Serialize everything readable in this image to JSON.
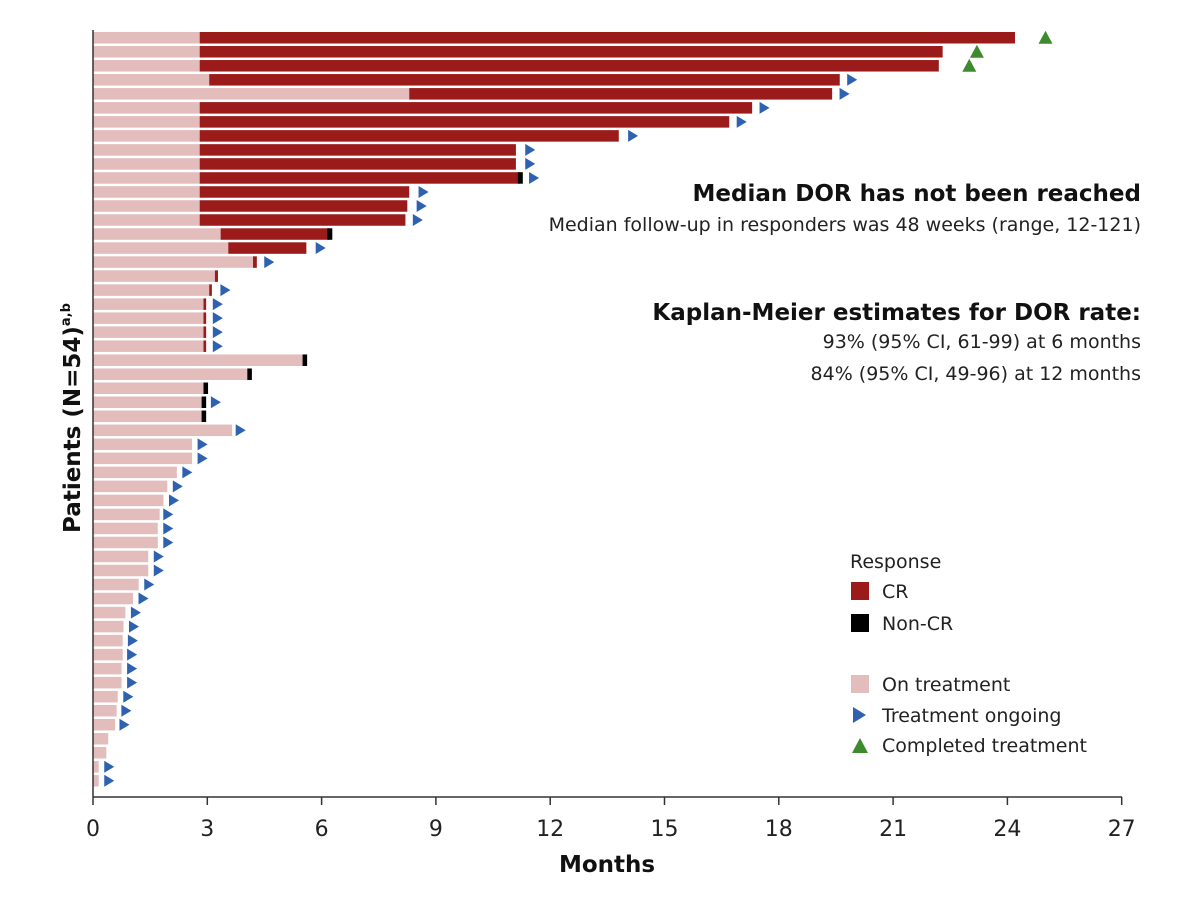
{
  "chart_data": {
    "type": "bar",
    "orientation": "horizontal-swimmer",
    "xlabel": "Months",
    "ylabel_main": "Patients (N=54)",
    "ylabel_sup": "a,b",
    "xlim": [
      0,
      27
    ],
    "xticks": [
      "0",
      "3",
      "6",
      "9",
      "12",
      "15",
      "18",
      "21",
      "24",
      "27"
    ],
    "n_patients": 54,
    "colors": {
      "on_treatment": "#e3bcbc",
      "cr": "#9b1b1b",
      "non_cr": "#000000",
      "ongoing": "#2e62b0",
      "completed": "#3d8b2e",
      "axis": "#333333"
    },
    "annotations": {
      "median_title": "Median DOR has not been reached",
      "median_sub": "Median follow-up in responders was 48 weeks (range, 12-121)",
      "km_title": "Kaplan-Meier estimates for DOR rate:",
      "km_line1": "93% (95% CI, 61-99) at 6 months",
      "km_line2": "84% (95% CI, 49-96) at 12 months"
    },
    "legend": {
      "title": "Response",
      "cr": "CR",
      "non_cr": "Non-CR",
      "on_treatment": "On treatment",
      "ongoing": "Treatment ongoing",
      "completed": "Completed treatment"
    },
    "patients": [
      {
        "onset": 2.8,
        "end": 24.2,
        "resp": "CR",
        "marker": "completed",
        "marker_at": 25.0
      },
      {
        "onset": 2.8,
        "end": 22.3,
        "resp": "CR",
        "marker": "completed",
        "marker_at": 23.2
      },
      {
        "onset": 2.8,
        "end": 22.2,
        "resp": "CR",
        "marker": "completed",
        "marker_at": 23.0
      },
      {
        "onset": 3.05,
        "end": 19.6,
        "resp": "CR",
        "marker": "ongoing",
        "marker_at": 19.9
      },
      {
        "onset": 8.3,
        "end": 19.4,
        "resp": "CR",
        "marker": "ongoing",
        "marker_at": 19.7
      },
      {
        "onset": 2.8,
        "end": 17.3,
        "resp": "CR",
        "marker": "ongoing",
        "marker_at": 17.6
      },
      {
        "onset": 2.8,
        "end": 16.7,
        "resp": "CR",
        "marker": "ongoing",
        "marker_at": 17.0
      },
      {
        "onset": 2.8,
        "end": 13.8,
        "resp": "CR",
        "marker": "ongoing",
        "marker_at": 14.15
      },
      {
        "onset": 2.8,
        "end": 11.1,
        "resp": "CR",
        "marker": "ongoing",
        "marker_at": 11.45
      },
      {
        "onset": 2.8,
        "end": 11.1,
        "resp": "CR",
        "marker": "ongoing",
        "marker_at": 11.45
      },
      {
        "onset": 2.8,
        "end": 11.2,
        "resp": "CR",
        "marker": "ongoing",
        "marker_at": 11.55,
        "nonCR_at": 11.15
      },
      {
        "onset": 2.8,
        "end": 8.3,
        "resp": "CR",
        "marker": "ongoing",
        "marker_at": 8.65
      },
      {
        "onset": 2.8,
        "end": 8.25,
        "resp": "CR",
        "marker": "ongoing",
        "marker_at": 8.6
      },
      {
        "onset": 2.8,
        "end": 8.2,
        "resp": "CR",
        "marker": "ongoing",
        "marker_at": 8.5
      },
      {
        "onset": 3.35,
        "end": 6.2,
        "resp": "CR",
        "marker": "none",
        "nonCR_at": 6.15
      },
      {
        "onset": 3.55,
        "end": 5.6,
        "resp": "CR",
        "marker": "ongoing",
        "marker_at": 5.95
      },
      {
        "onset": 4.2,
        "end": 4.3,
        "resp": "CR",
        "marker": "ongoing",
        "marker_at": 4.6
      },
      {
        "onset": 3.2,
        "end": 3.28,
        "resp": "CR",
        "marker": "none"
      },
      {
        "onset": 3.05,
        "end": 3.12,
        "resp": "CR",
        "marker": "ongoing",
        "marker_at": 3.45
      },
      {
        "onset": 2.9,
        "end": 2.97,
        "resp": "CR",
        "marker": "ongoing",
        "marker_at": 3.25
      },
      {
        "onset": 2.9,
        "end": 2.97,
        "resp": "CR",
        "marker": "ongoing",
        "marker_at": 3.25
      },
      {
        "onset": 2.9,
        "end": 2.97,
        "resp": "CR",
        "marker": "ongoing",
        "marker_at": 3.25
      },
      {
        "onset": 2.9,
        "end": 2.97,
        "resp": "CR",
        "marker": "ongoing",
        "marker_at": 3.25
      },
      {
        "onset": 5.5,
        "end": 5.62,
        "resp": "Non-CR",
        "marker": "none"
      },
      {
        "onset": 4.05,
        "end": 4.17,
        "resp": "Non-CR",
        "marker": "none"
      },
      {
        "onset": 2.9,
        "end": 3.02,
        "resp": "Non-CR",
        "marker": "none"
      },
      {
        "onset": 2.85,
        "end": 2.97,
        "resp": "Non-CR",
        "marker": "ongoing",
        "marker_at": 3.2
      },
      {
        "onset": 2.85,
        "end": 2.97,
        "resp": "Non-CR",
        "marker": "none"
      },
      {
        "onset": 3.65,
        "end": 3.65,
        "resp": "none",
        "marker": "ongoing",
        "marker_at": 3.85
      },
      {
        "onset": 2.6,
        "end": 2.6,
        "resp": "none",
        "marker": "ongoing",
        "marker_at": 2.85
      },
      {
        "onset": 2.6,
        "end": 2.6,
        "resp": "none",
        "marker": "ongoing",
        "marker_at": 2.85
      },
      {
        "onset": 2.2,
        "end": 2.2,
        "resp": "none",
        "marker": "ongoing",
        "marker_at": 2.45
      },
      {
        "onset": 1.95,
        "end": 1.95,
        "resp": "none",
        "marker": "ongoing",
        "marker_at": 2.2
      },
      {
        "onset": 1.85,
        "end": 1.85,
        "resp": "none",
        "marker": "ongoing",
        "marker_at": 2.1
      },
      {
        "onset": 1.75,
        "end": 1.75,
        "resp": "none",
        "marker": "ongoing",
        "marker_at": 1.95
      },
      {
        "onset": 1.7,
        "end": 1.7,
        "resp": "none",
        "marker": "ongoing",
        "marker_at": 1.95
      },
      {
        "onset": 1.7,
        "end": 1.7,
        "resp": "none",
        "marker": "ongoing",
        "marker_at": 1.95
      },
      {
        "onset": 1.45,
        "end": 1.45,
        "resp": "none",
        "marker": "ongoing",
        "marker_at": 1.7
      },
      {
        "onset": 1.45,
        "end": 1.45,
        "resp": "none",
        "marker": "ongoing",
        "marker_at": 1.7
      },
      {
        "onset": 1.2,
        "end": 1.2,
        "resp": "none",
        "marker": "ongoing",
        "marker_at": 1.45
      },
      {
        "onset": 1.05,
        "end": 1.05,
        "resp": "none",
        "marker": "ongoing",
        "marker_at": 1.3
      },
      {
        "onset": 0.85,
        "end": 0.85,
        "resp": "none",
        "marker": "ongoing",
        "marker_at": 1.1
      },
      {
        "onset": 0.8,
        "end": 0.8,
        "resp": "none",
        "marker": "ongoing",
        "marker_at": 1.05
      },
      {
        "onset": 0.78,
        "end": 0.78,
        "resp": "none",
        "marker": "ongoing",
        "marker_at": 1.02
      },
      {
        "onset": 0.78,
        "end": 0.78,
        "resp": "none",
        "marker": "ongoing",
        "marker_at": 1.0
      },
      {
        "onset": 0.75,
        "end": 0.75,
        "resp": "none",
        "marker": "ongoing",
        "marker_at": 1.0
      },
      {
        "onset": 0.75,
        "end": 0.75,
        "resp": "none",
        "marker": "ongoing",
        "marker_at": 1.0
      },
      {
        "onset": 0.65,
        "end": 0.65,
        "resp": "none",
        "marker": "ongoing",
        "marker_at": 0.9
      },
      {
        "onset": 0.62,
        "end": 0.62,
        "resp": "none",
        "marker": "ongoing",
        "marker_at": 0.85
      },
      {
        "onset": 0.58,
        "end": 0.58,
        "resp": "none",
        "marker": "ongoing",
        "marker_at": 0.8
      },
      {
        "onset": 0.4,
        "end": 0.4,
        "resp": "none",
        "marker": "none"
      },
      {
        "onset": 0.35,
        "end": 0.35,
        "resp": "none",
        "marker": "none"
      },
      {
        "onset": 0.15,
        "end": 0.15,
        "resp": "none",
        "marker": "ongoing",
        "marker_at": 0.4
      },
      {
        "onset": 0.15,
        "end": 0.15,
        "resp": "none",
        "marker": "ongoing",
        "marker_at": 0.4
      }
    ]
  }
}
